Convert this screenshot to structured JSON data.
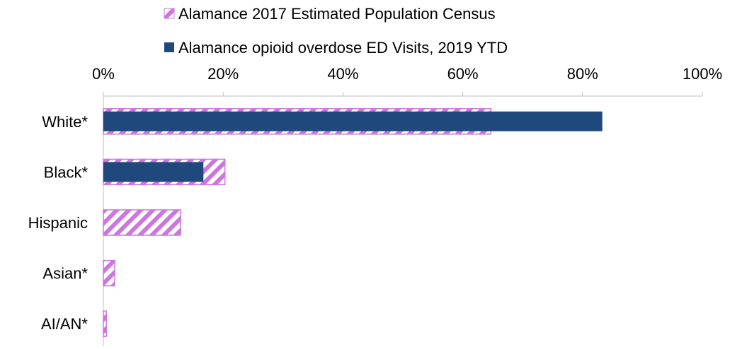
{
  "chart_data": {
    "type": "bar",
    "orientation": "horizontal",
    "categories": [
      "White*",
      "Black*",
      "Hispanic",
      "Asian*",
      "AI/AN*"
    ],
    "series": [
      {
        "name": "Alamance 2017 Estimated Population Census",
        "values": [
          64.7,
          20.3,
          12.9,
          1.9,
          0.5
        ],
        "color": "#cc77dd",
        "pattern": "diagonal-hatch"
      },
      {
        "name": "Alamance opioid overdose ED Visits, 2019 YTD",
        "values": [
          83.3,
          16.7,
          0,
          0,
          0
        ],
        "color": "#1f497d",
        "pattern": "solid"
      }
    ],
    "xlim": [
      0,
      100
    ],
    "ticks": [
      0,
      20,
      40,
      60,
      80,
      100
    ],
    "tick_labels": [
      "0%",
      "20%",
      "40%",
      "60%",
      "80%",
      "100%"
    ],
    "axis_position": "top",
    "legend_position": "top",
    "grid": false
  }
}
